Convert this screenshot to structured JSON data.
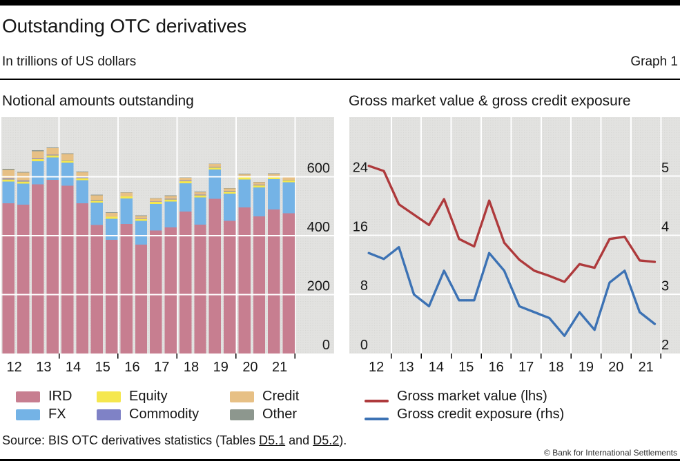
{
  "header": {
    "title": "Outstanding OTC derivatives",
    "subtitle": "In trillions of US dollars",
    "graph_label": "Graph 1"
  },
  "panels": {
    "left_title": "Notional amounts outstanding",
    "right_title": "Gross market value & gross credit exposure"
  },
  "legend_left": [
    {
      "label": "IRD",
      "color": "#c77e90"
    },
    {
      "label": "FX",
      "color": "#74b3e6"
    },
    {
      "label": "Equity",
      "color": "#f5e74e"
    },
    {
      "label": "Commodity",
      "color": "#7f82c6"
    },
    {
      "label": "Credit",
      "color": "#e7c085"
    },
    {
      "label": "Other",
      "color": "#8d978e"
    }
  ],
  "legend_right": [
    {
      "label": "Gross market value (lhs)",
      "color": "#ae3a3c"
    },
    {
      "label": "Gross credit exposure (rhs)",
      "color": "#3c72b4"
    }
  ],
  "footer": {
    "source_prefix": "Source: BIS OTC derivatives statistics (Tables ",
    "link1": "D5.1",
    "mid": " and ",
    "link2": "D5.2",
    "suffix": ").",
    "copyright": "© Bank for International Settlements"
  },
  "chart_data": [
    {
      "type": "bar",
      "stacked": true,
      "title": "Notional amounts outstanding",
      "unit": "USD trillions",
      "categories": [
        "2012 H1",
        "2012 H2",
        "2013 H1",
        "2013 H2",
        "2014 H1",
        "2014 H2",
        "2015 H1",
        "2015 H2",
        "2016 H1",
        "2016 H2",
        "2017 H1",
        "2017 H2",
        "2018 H1",
        "2018 H2",
        "2019 H1",
        "2019 H2",
        "2020 H1",
        "2020 H2",
        "2021 H1",
        "2021 H2"
      ],
      "x_tick_labels": [
        "12",
        "13",
        "14",
        "15",
        "16",
        "17",
        "18",
        "19",
        "20",
        "21"
      ],
      "y_ticks": [
        0,
        200,
        400,
        600
      ],
      "ylim": [
        0,
        800
      ],
      "grid": true,
      "legend_position": "bottom",
      "series": [
        {
          "name": "IRD",
          "color": "#c77e90",
          "values": [
            510,
            505,
            575,
            590,
            570,
            510,
            437,
            386,
            440,
            370,
            418,
            428,
            482,
            438,
            525,
            450,
            496,
            466,
            489,
            476
          ]
        },
        {
          "name": "FX",
          "color": "#74b3e6",
          "values": [
            74,
            72,
            78,
            76,
            78,
            78,
            76,
            71,
            86,
            80,
            90,
            88,
            96,
            92,
            100,
            93,
            95,
            98,
            103,
            105
          ]
        },
        {
          "name": "Equity",
          "color": "#f5e74e",
          "values": [
            7,
            7,
            7,
            7,
            7,
            8,
            7,
            7,
            7,
            6,
            7,
            7,
            7,
            7,
            7,
            7,
            7,
            7,
            7,
            7
          ]
        },
        {
          "name": "Commodity",
          "color": "#7f82c6",
          "values": [
            3,
            3,
            2,
            2,
            2,
            2,
            2,
            1,
            1,
            1,
            1,
            2,
            2,
            2,
            2,
            2,
            2,
            2,
            2,
            2
          ]
        },
        {
          "name": "Credit",
          "color": "#e7c085",
          "values": [
            30,
            27,
            25,
            22,
            20,
            17,
            15,
            13,
            12,
            10,
            10,
            10,
            10,
            9,
            9,
            8,
            9,
            8,
            9,
            9
          ]
        },
        {
          "name": "Other",
          "color": "#8d978e",
          "values": [
            3,
            3,
            3,
            3,
            3,
            3,
            2,
            2,
            2,
            2,
            2,
            2,
            2,
            2,
            2,
            2,
            2,
            2,
            2,
            2
          ]
        }
      ]
    },
    {
      "type": "line",
      "title": "Gross market value & gross credit exposure",
      "unit": "USD trillions",
      "categories": [
        "2012 H1",
        "2012 H2",
        "2013 H1",
        "2013 H2",
        "2014 H1",
        "2014 H2",
        "2015 H1",
        "2015 H2",
        "2016 H1",
        "2016 H2",
        "2017 H1",
        "2017 H2",
        "2018 H1",
        "2018 H2",
        "2019 H1",
        "2019 H2",
        "2020 H1",
        "2020 H2",
        "2021 H1",
        "2021 H2"
      ],
      "x_tick_labels": [
        "12",
        "13",
        "14",
        "15",
        "16",
        "17",
        "18",
        "19",
        "20",
        "21"
      ],
      "left_axis": {
        "ticks": [
          0,
          8,
          16,
          24
        ],
        "lim": [
          0,
          32
        ]
      },
      "right_axis": {
        "ticks": [
          2,
          3,
          4,
          5
        ],
        "lim": [
          2,
          6
        ]
      },
      "grid": true,
      "legend_position": "bottom",
      "series": [
        {
          "name": "Gross market value (lhs)",
          "axis": "left",
          "color": "#ae3a3c",
          "values": [
            25.4,
            24.7,
            20.2,
            18.8,
            17.4,
            20.9,
            15.5,
            14.5,
            20.7,
            15.0,
            12.7,
            11.2,
            10.5,
            9.7,
            12.1,
            11.6,
            15.5,
            15.8,
            12.6,
            12.4
          ]
        },
        {
          "name": "Gross credit exposure (rhs)",
          "axis": "right",
          "color": "#3c72b4",
          "values": [
            3.7,
            3.6,
            3.8,
            3.0,
            2.8,
            3.4,
            2.9,
            2.9,
            3.7,
            3.4,
            2.8,
            2.7,
            2.6,
            2.3,
            2.7,
            2.4,
            3.2,
            3.4,
            2.7,
            2.5
          ]
        }
      ]
    }
  ]
}
